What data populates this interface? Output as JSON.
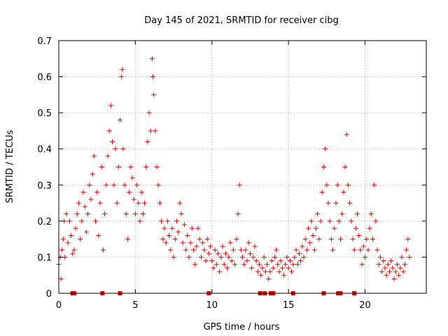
{
  "chart_data": {
    "type": "scatter",
    "title": "Day 145 of 2021, SRMTID for receiver cibg",
    "xlabel": "GPS time / hours",
    "ylabel": "SRMTID / TECUs",
    "xlim": [
      0,
      24
    ],
    "ylim": [
      0,
      0.7
    ],
    "xticks": [
      0,
      5,
      10,
      15,
      20
    ],
    "yticks": [
      0,
      0.1,
      0.2,
      0.3,
      0.4,
      0.5,
      0.6,
      0.7
    ],
    "grid": true,
    "legend": "none",
    "marker": "plus",
    "color": "#e00000",
    "series": [
      {
        "name": "SRMTID",
        "points": [
          [
            0.0,
            0.08
          ],
          [
            0.1,
            0.1
          ],
          [
            0.15,
            0.04
          ],
          [
            0.2,
            0.12
          ],
          [
            0.3,
            0.15
          ],
          [
            0.35,
            0.2
          ],
          [
            0.4,
            0.1
          ],
          [
            0.5,
            0.22
          ],
          [
            0.6,
            0.14
          ],
          [
            0.7,
            0.2
          ],
          [
            0.8,
            0.16
          ],
          [
            0.9,
            0.11
          ],
          [
            1.0,
            0.12
          ],
          [
            1.1,
            0.18
          ],
          [
            1.2,
            0.22
          ],
          [
            1.3,
            0.25
          ],
          [
            1.4,
            0.15
          ],
          [
            1.5,
            0.2
          ],
          [
            1.6,
            0.28
          ],
          [
            1.7,
            0.24
          ],
          [
            1.8,
            0.17
          ],
          [
            1.9,
            0.22
          ],
          [
            2.0,
            0.3
          ],
          [
            2.1,
            0.26
          ],
          [
            2.2,
            0.33
          ],
          [
            2.3,
            0.38
          ],
          [
            2.4,
            0.2
          ],
          [
            2.5,
            0.28
          ],
          [
            2.6,
            0.16
          ],
          [
            2.7,
            0.25
          ],
          [
            2.8,
            0.35
          ],
          [
            2.9,
            0.12
          ],
          [
            3.0,
            0.22
          ],
          [
            3.1,
            0.3
          ],
          [
            3.2,
            0.38
          ],
          [
            3.3,
            0.45
          ],
          [
            3.4,
            0.52
          ],
          [
            3.5,
            0.42
          ],
          [
            3.6,
            0.3
          ],
          [
            3.7,
            0.4
          ],
          [
            3.8,
            0.25
          ],
          [
            3.9,
            0.35
          ],
          [
            4.0,
            0.48
          ],
          [
            4.1,
            0.6
          ],
          [
            4.15,
            0.62
          ],
          [
            4.2,
            0.4
          ],
          [
            4.3,
            0.3
          ],
          [
            4.4,
            0.22
          ],
          [
            4.5,
            0.15
          ],
          [
            4.6,
            0.28
          ],
          [
            4.7,
            0.35
          ],
          [
            4.8,
            0.32
          ],
          [
            4.9,
            0.26
          ],
          [
            5.0,
            0.22
          ],
          [
            5.1,
            0.3
          ],
          [
            5.2,
            0.25
          ],
          [
            5.3,
            0.2
          ],
          [
            5.4,
            0.28
          ],
          [
            5.5,
            0.22
          ],
          [
            5.6,
            0.25
          ],
          [
            5.7,
            0.35
          ],
          [
            5.8,
            0.42
          ],
          [
            5.9,
            0.5
          ],
          [
            6.0,
            0.45
          ],
          [
            6.1,
            0.65
          ],
          [
            6.15,
            0.6
          ],
          [
            6.2,
            0.55
          ],
          [
            6.3,
            0.45
          ],
          [
            6.4,
            0.35
          ],
          [
            6.5,
            0.3
          ],
          [
            6.6,
            0.25
          ],
          [
            6.7,
            0.2
          ],
          [
            6.8,
            0.15
          ],
          [
            6.9,
            0.18
          ],
          [
            7.0,
            0.14
          ],
          [
            7.1,
            0.2
          ],
          [
            7.2,
            0.16
          ],
          [
            7.3,
            0.12
          ],
          [
            7.4,
            0.18
          ],
          [
            7.5,
            0.1
          ],
          [
            7.6,
            0.15
          ],
          [
            7.7,
            0.2
          ],
          [
            7.8,
            0.17
          ],
          [
            7.9,
            0.25
          ],
          [
            8.0,
            0.22
          ],
          [
            8.1,
            0.14
          ],
          [
            8.2,
            0.19
          ],
          [
            8.3,
            0.12
          ],
          [
            8.4,
            0.16
          ],
          [
            8.5,
            0.1
          ],
          [
            8.6,
            0.14
          ],
          [
            8.7,
            0.18
          ],
          [
            8.8,
            0.12
          ],
          [
            8.9,
            0.08
          ],
          [
            9.0,
            0.13
          ],
          [
            9.1,
            0.18
          ],
          [
            9.2,
            0.15
          ],
          [
            9.3,
            0.1
          ],
          [
            9.4,
            0.14
          ],
          [
            9.5,
            0.12
          ],
          [
            9.6,
            0.09
          ],
          [
            9.7,
            0.15
          ],
          [
            9.8,
            0.11
          ],
          [
            9.9,
            0.13
          ],
          [
            10.0,
            0.09
          ],
          [
            10.1,
            0.07
          ],
          [
            10.2,
            0.12
          ],
          [
            10.3,
            0.08
          ],
          [
            10.4,
            0.11
          ],
          [
            10.5,
            0.06
          ],
          [
            10.6,
            0.1
          ],
          [
            10.7,
            0.13
          ],
          [
            10.8,
            0.08
          ],
          [
            10.9,
            0.11
          ],
          [
            11.0,
            0.07
          ],
          [
            11.1,
            0.1
          ],
          [
            11.2,
            0.14
          ],
          [
            11.3,
            0.09
          ],
          [
            11.4,
            0.12
          ],
          [
            11.5,
            0.08
          ],
          [
            11.6,
            0.15
          ],
          [
            11.7,
            0.22
          ],
          [
            11.8,
            0.3
          ],
          [
            11.9,
            0.12
          ],
          [
            12.0,
            0.1
          ],
          [
            12.1,
            0.08
          ],
          [
            12.2,
            0.12
          ],
          [
            12.3,
            0.09
          ],
          [
            12.4,
            0.14
          ],
          [
            12.5,
            0.11
          ],
          [
            12.6,
            0.07
          ],
          [
            12.7,
            0.1
          ],
          [
            12.8,
            0.13
          ],
          [
            12.9,
            0.09
          ],
          [
            13.0,
            0.06
          ],
          [
            13.1,
            0.08
          ],
          [
            13.2,
            0.05
          ],
          [
            13.3,
            0.07
          ],
          [
            13.4,
            0.1
          ],
          [
            13.5,
            0.06
          ],
          [
            13.6,
            0.08
          ],
          [
            13.7,
            0.04
          ],
          [
            13.8,
            0.06
          ],
          [
            13.9,
            0.09
          ],
          [
            14.0,
            0.07
          ],
          [
            14.1,
            0.1
          ],
          [
            14.2,
            0.12
          ],
          [
            14.3,
            0.08
          ],
          [
            14.4,
            0.06
          ],
          [
            14.5,
            0.09
          ],
          [
            14.6,
            0.07
          ],
          [
            14.7,
            0.05
          ],
          [
            14.8,
            0.08
          ],
          [
            14.9,
            0.1
          ],
          [
            15.0,
            0.07
          ],
          [
            15.1,
            0.09
          ],
          [
            15.2,
            0.06
          ],
          [
            15.3,
            0.08
          ],
          [
            15.4,
            0.1
          ],
          [
            15.5,
            0.12
          ],
          [
            15.6,
            0.08
          ],
          [
            15.7,
            0.11
          ],
          [
            15.8,
            0.09
          ],
          [
            15.9,
            0.13
          ],
          [
            16.0,
            0.1
          ],
          [
            16.1,
            0.15
          ],
          [
            16.2,
            0.12
          ],
          [
            16.3,
            0.18
          ],
          [
            16.4,
            0.14
          ],
          [
            16.5,
            0.2
          ],
          [
            16.6,
            0.16
          ],
          [
            16.7,
            0.12
          ],
          [
            16.8,
            0.18
          ],
          [
            16.9,
            0.22
          ],
          [
            17.0,
            0.15
          ],
          [
            17.1,
            0.2
          ],
          [
            17.2,
            0.28
          ],
          [
            17.3,
            0.35
          ],
          [
            17.4,
            0.4
          ],
          [
            17.5,
            0.3
          ],
          [
            17.6,
            0.25
          ],
          [
            17.7,
            0.2
          ],
          [
            17.8,
            0.15
          ],
          [
            17.9,
            0.12
          ],
          [
            18.0,
            0.18
          ],
          [
            18.1,
            0.25
          ],
          [
            18.2,
            0.3
          ],
          [
            18.3,
            0.2
          ],
          [
            18.4,
            0.15
          ],
          [
            18.5,
            0.22
          ],
          [
            18.6,
            0.28
          ],
          [
            18.7,
            0.35
          ],
          [
            18.8,
            0.44
          ],
          [
            18.9,
            0.3
          ],
          [
            19.0,
            0.25
          ],
          [
            19.1,
            0.2
          ],
          [
            19.2,
            0.15
          ],
          [
            19.3,
            0.12
          ],
          [
            19.4,
            0.18
          ],
          [
            19.5,
            0.22
          ],
          [
            19.6,
            0.16
          ],
          [
            19.7,
            0.12
          ],
          [
            19.8,
            0.08
          ],
          [
            19.9,
            0.13
          ],
          [
            20.0,
            0.1
          ],
          [
            20.1,
            0.15
          ],
          [
            20.2,
            0.12
          ],
          [
            20.3,
            0.18
          ],
          [
            20.4,
            0.22
          ],
          [
            20.5,
            0.15
          ],
          [
            20.6,
            0.3
          ],
          [
            20.7,
            0.2
          ],
          [
            20.8,
            0.12
          ],
          [
            20.9,
            0.08
          ],
          [
            21.0,
            0.1
          ],
          [
            21.1,
            0.06
          ],
          [
            21.2,
            0.09
          ],
          [
            21.3,
            0.07
          ],
          [
            21.4,
            0.05
          ],
          [
            21.5,
            0.08
          ],
          [
            21.6,
            0.06
          ],
          [
            21.7,
            0.09
          ],
          [
            21.8,
            0.07
          ],
          [
            21.9,
            0.04
          ],
          [
            22.0,
            0.06
          ],
          [
            22.1,
            0.08
          ],
          [
            22.2,
            0.05
          ],
          [
            22.3,
            0.07
          ],
          [
            22.4,
            0.1
          ],
          [
            22.5,
            0.06
          ],
          [
            22.6,
            0.08
          ],
          [
            22.7,
            0.12
          ],
          [
            22.8,
            0.15
          ],
          [
            22.9,
            0.1
          ]
        ]
      }
    ],
    "zero_markers_x": [
      0.9,
      1.0,
      2.85,
      4.0,
      9.8,
      13.15,
      13.45,
      13.85,
      14.0,
      15.3,
      17.3,
      18.25,
      18.4,
      19.3
    ]
  }
}
